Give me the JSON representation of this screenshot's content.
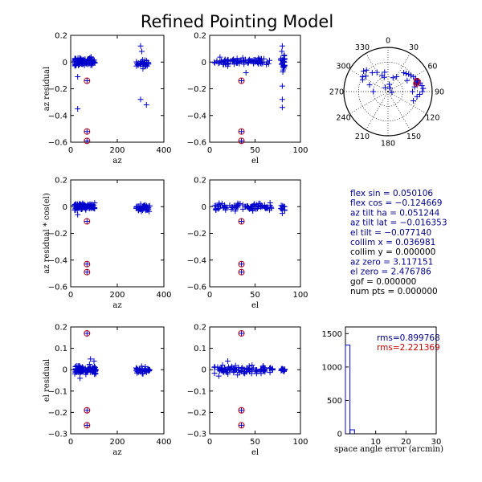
{
  "title": "Refined Pointing Model",
  "colors": {
    "primary": "#0000cc",
    "outlier": "#cc0000",
    "text_blue": "#00008b",
    "text_black": "#000000"
  },
  "residual_panels": [
    {
      "id": "az-vs-az",
      "xlabel": "az",
      "ylabel": "az residual",
      "xlim": [
        0,
        400
      ],
      "ylim": [
        -0.6,
        0.2
      ],
      "xticks": [
        0,
        200,
        400
      ],
      "yticks": [
        0.2,
        0,
        -0.2,
        -0.4,
        -0.6
      ],
      "xtick_labels": [
        "0",
        "200",
        "400"
      ],
      "ytick_labels": [
        "0.2",
        "0",
        "−0.2",
        "−0.4",
        "−0.6"
      ],
      "clusters": [
        {
          "x": [
            15,
            105
          ],
          "y": [
            -0.04,
            0.05
          ],
          "n": 90
        },
        {
          "x": [
            280,
            335
          ],
          "y": [
            -0.05,
            0.03
          ],
          "n": 30
        }
      ],
      "extra_points": [
        [
          30,
          -0.11
        ],
        [
          30,
          -0.35
        ],
        [
          300,
          0.12
        ],
        [
          305,
          0.08
        ],
        [
          310,
          -0.05
        ],
        [
          300,
          -0.28
        ],
        [
          325,
          -0.32
        ],
        [
          300,
          -0.02
        ]
      ],
      "outliers": [
        [
          70,
          -0.14
        ],
        [
          70,
          -0.52
        ],
        [
          70,
          -0.59
        ]
      ]
    },
    {
      "id": "az-vs-el",
      "xlabel": "el",
      "ylabel": "",
      "xlim": [
        0,
        100
      ],
      "ylim": [
        -0.6,
        0.2
      ],
      "xticks": [
        0,
        50,
        100
      ],
      "yticks": [
        0.2,
        0,
        -0.2,
        -0.4,
        -0.6
      ],
      "xtick_labels": [
        "0",
        "50",
        "100"
      ],
      "ytick_labels": [
        "0.2",
        "0",
        "−0.2",
        "−0.4",
        "−0.6"
      ],
      "clusters": [
        {
          "x": [
            5,
            68
          ],
          "y": [
            -0.04,
            0.05
          ],
          "n": 90
        },
        {
          "x": [
            78,
            83
          ],
          "y": [
            -0.12,
            0.1
          ],
          "n": 25
        }
      ],
      "extra_points": [
        [
          80,
          -0.28
        ],
        [
          80,
          -0.34
        ],
        [
          80,
          0.12
        ],
        [
          80,
          -0.18
        ],
        [
          40,
          -0.08
        ],
        [
          20,
          -0.03
        ]
      ],
      "outliers": [
        [
          35,
          -0.14
        ],
        [
          35,
          -0.52
        ],
        [
          35,
          -0.59
        ]
      ]
    },
    {
      "id": "azcos-vs-az",
      "xlabel": "az",
      "ylabel": "az residual * cos(el)",
      "xlim": [
        0,
        400
      ],
      "ylim": [
        -0.6,
        0.2
      ],
      "xticks": [
        0,
        200,
        400
      ],
      "yticks": [
        0.2,
        0,
        -0.2,
        -0.4,
        -0.6
      ],
      "xtick_labels": [
        "0",
        "200",
        "400"
      ],
      "ytick_labels": [
        "0.2",
        "0",
        "−0.2",
        "−0.4",
        "−0.6"
      ],
      "clusters": [
        {
          "x": [
            15,
            105
          ],
          "y": [
            -0.04,
            0.04
          ],
          "n": 90
        },
        {
          "x": [
            280,
            340
          ],
          "y": [
            -0.05,
            0.03
          ],
          "n": 40
        }
      ],
      "extra_points": [
        [
          30,
          -0.06
        ]
      ],
      "outliers": [
        [
          70,
          -0.11
        ],
        [
          70,
          -0.43
        ],
        [
          70,
          -0.49
        ]
      ]
    },
    {
      "id": "azcos-vs-el",
      "xlabel": "el",
      "ylabel": "",
      "xlim": [
        0,
        100
      ],
      "ylim": [
        -0.6,
        0.2
      ],
      "xticks": [
        0,
        50,
        100
      ],
      "yticks": [
        0.2,
        0,
        -0.2,
        -0.4,
        -0.6
      ],
      "xtick_labels": [
        "0",
        "50",
        "100"
      ],
      "ytick_labels": [
        "0.2",
        "0",
        "−0.2",
        "−0.4",
        "−0.6"
      ],
      "clusters": [
        {
          "x": [
            5,
            68
          ],
          "y": [
            -0.04,
            0.04
          ],
          "n": 90
        },
        {
          "x": [
            78,
            83
          ],
          "y": [
            -0.05,
            0.02
          ],
          "n": 12
        }
      ],
      "extra_points": [
        [
          80,
          -0.05
        ]
      ],
      "outliers": [
        [
          35,
          -0.11
        ],
        [
          35,
          -0.43
        ],
        [
          35,
          -0.49
        ]
      ]
    },
    {
      "id": "el-vs-az",
      "xlabel": "az",
      "ylabel": "el residual",
      "xlim": [
        0,
        400
      ],
      "ylim": [
        -0.3,
        0.2
      ],
      "xticks": [
        0,
        200,
        400
      ],
      "yticks": [
        0.2,
        0.1,
        0,
        -0.1,
        -0.2,
        -0.3
      ],
      "xtick_labels": [
        "0",
        "200",
        "400"
      ],
      "ytick_labels": [
        "0.2",
        "0.1",
        "0",
        "−0.1",
        "−0.2",
        "−0.3"
      ],
      "clusters": [
        {
          "x": [
            15,
            110
          ],
          "y": [
            -0.03,
            0.03
          ],
          "n": 100
        },
        {
          "x": [
            280,
            340
          ],
          "y": [
            -0.025,
            0.02
          ],
          "n": 40
        }
      ],
      "extra_points": [
        [
          85,
          0.05
        ],
        [
          100,
          0.04
        ],
        [
          40,
          -0.04
        ]
      ],
      "outliers": [
        [
          70,
          0.17
        ],
        [
          70,
          -0.19
        ],
        [
          70,
          -0.26
        ]
      ]
    },
    {
      "id": "el-vs-el",
      "xlabel": "el",
      "ylabel": "",
      "xlim": [
        0,
        100
      ],
      "ylim": [
        -0.3,
        0.2
      ],
      "xticks": [
        0,
        50,
        100
      ],
      "yticks": [
        0.2,
        0.1,
        0,
        -0.1,
        -0.2,
        -0.3
      ],
      "xtick_labels": [
        "0",
        "50",
        "100"
      ],
      "ytick_labels": [
        "0.2",
        "0.1",
        "0",
        "−0.1",
        "−0.2",
        "−0.3"
      ],
      "clusters": [
        {
          "x": [
            5,
            70
          ],
          "y": [
            -0.03,
            0.03
          ],
          "n": 100
        },
        {
          "x": [
            78,
            83
          ],
          "y": [
            -0.02,
            0.02
          ],
          "n": 12
        }
      ],
      "extra_points": [
        [
          20,
          0.04
        ],
        [
          10,
          -0.03
        ]
      ],
      "outliers": [
        [
          35,
          0.17
        ],
        [
          35,
          -0.19
        ],
        [
          35,
          -0.26
        ]
      ]
    }
  ],
  "polar": {
    "angle_labels": [
      {
        "deg": 0,
        "text": "0"
      },
      {
        "deg": 30,
        "text": "30"
      },
      {
        "deg": 60,
        "text": "60"
      },
      {
        "deg": 90,
        "text": "90"
      },
      {
        "deg": 120,
        "text": "120"
      },
      {
        "deg": 150,
        "text": "150"
      },
      {
        "deg": 180,
        "text": "180"
      },
      {
        "deg": 210,
        "text": "210"
      },
      {
        "deg": 240,
        "text": "240"
      },
      {
        "deg": 270,
        "text": "270"
      },
      {
        "deg": 300,
        "text": "300"
      },
      {
        "deg": 330,
        "text": "330"
      }
    ],
    "points": [
      {
        "az": 300,
        "el": 30
      },
      {
        "az": 305,
        "el": 35
      },
      {
        "az": 310,
        "el": 25
      },
      {
        "az": 320,
        "el": 40
      },
      {
        "az": 315,
        "el": 28
      },
      {
        "az": 295,
        "el": 33
      },
      {
        "az": 330,
        "el": 45
      },
      {
        "az": 340,
        "el": 55
      },
      {
        "az": 345,
        "el": 60
      },
      {
        "az": 350,
        "el": 50
      },
      {
        "az": 20,
        "el": 60
      },
      {
        "az": 30,
        "el": 55
      },
      {
        "az": 40,
        "el": 40
      },
      {
        "az": 45,
        "el": 38
      },
      {
        "az": 50,
        "el": 35
      },
      {
        "az": 55,
        "el": 33
      },
      {
        "az": 60,
        "el": 30
      },
      {
        "az": 65,
        "el": 28
      },
      {
        "az": 70,
        "el": 25
      },
      {
        "az": 75,
        "el": 22
      },
      {
        "az": 80,
        "el": 20
      },
      {
        "az": 85,
        "el": 18
      },
      {
        "az": 90,
        "el": 20
      },
      {
        "az": 95,
        "el": 25
      },
      {
        "az": 100,
        "el": 30
      },
      {
        "az": 75,
        "el": 30
      },
      {
        "az": 60,
        "el": 45
      },
      {
        "az": 80,
        "el": 35
      },
      {
        "az": 90,
        "el": 40
      },
      {
        "az": 110,
        "el": 35
      },
      {
        "az": 325,
        "el": 80
      },
      {
        "az": 30,
        "el": 82
      },
      {
        "az": 100,
        "el": 82
      },
      {
        "az": 10,
        "el": 75
      },
      {
        "az": 270,
        "el": 60
      },
      {
        "az": 290,
        "el": 50
      }
    ],
    "outliers": [
      {
        "az": 72,
        "el": 28
      },
      {
        "az": 74,
        "el": 30
      },
      {
        "az": 70,
        "el": 27
      }
    ]
  },
  "parameters": [
    {
      "text": "flex sin = 0.050106",
      "color": "blue"
    },
    {
      "text": "flex cos = −0.124669",
      "color": "blue"
    },
    {
      "text": "az tilt ha = 0.051244",
      "color": "blue"
    },
    {
      "text": "az tilt lat = −0.016353",
      "color": "blue"
    },
    {
      "text": "el tilt = −0.077140",
      "color": "blue"
    },
    {
      "text": "collim x = 0.036981",
      "color": "blue"
    },
    {
      "text": "collim y = 0.000000",
      "color": "black"
    },
    {
      "text": "az zero = 3.117151",
      "color": "blue"
    },
    {
      "text": "el zero = 2.476786",
      "color": "blue"
    },
    {
      "text": "gof = 0.000000",
      "color": "black"
    },
    {
      "text": "num pts = 0.000000",
      "color": "black"
    }
  ],
  "histogram": {
    "xlabel": "space angle error (arcmin)",
    "xlim": [
      0,
      30
    ],
    "ylim": [
      0,
      1600
    ],
    "xticks": [
      10,
      20,
      30
    ],
    "yticks": [
      0,
      500,
      1000,
      1500
    ],
    "xtick_labels": [
      "10",
      "20",
      "30"
    ],
    "ytick_labels": [
      "0",
      "500",
      "1000",
      "1500"
    ],
    "bins": [
      {
        "x0": 0,
        "x1": 1.5,
        "count": 1330
      },
      {
        "x0": 1.5,
        "x1": 3,
        "count": 60
      }
    ],
    "rms_primary": "rms=0.899768",
    "rms_secondary": "rms=2.221369"
  }
}
